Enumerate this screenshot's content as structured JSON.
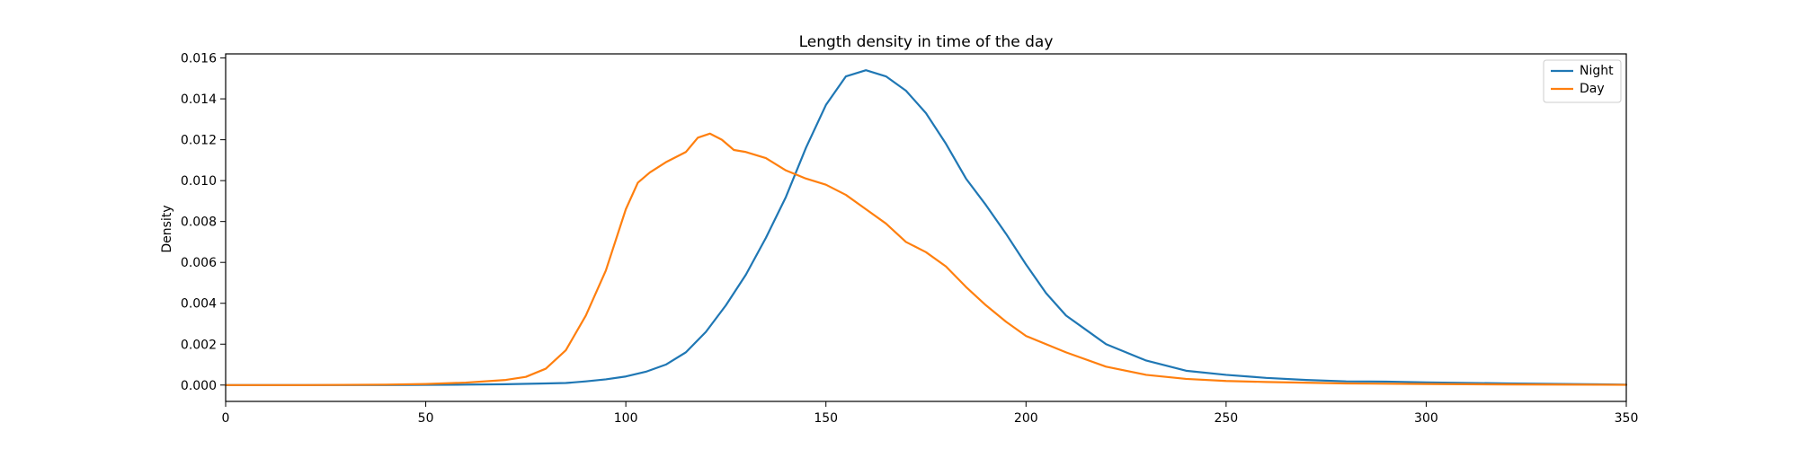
{
  "chart_data": {
    "type": "line",
    "title": "Length density in time of the day",
    "xlabel": "",
    "ylabel": "Density",
    "xlim": [
      0,
      350
    ],
    "ylim": [
      -0.0008,
      0.0162
    ],
    "xticks": [
      0,
      50,
      100,
      150,
      200,
      250,
      300,
      350
    ],
    "xtick_labels": [
      "0",
      "50",
      "100",
      "150",
      "200",
      "250",
      "300",
      "350"
    ],
    "yticks": [
      0.0,
      0.002,
      0.004,
      0.006,
      0.008,
      0.01,
      0.012,
      0.014,
      0.016
    ],
    "ytick_labels": [
      "0.000",
      "0.002",
      "0.004",
      "0.006",
      "0.008",
      "0.010",
      "0.012",
      "0.014",
      "0.016"
    ],
    "grid": false,
    "legend_position": "top-right",
    "series": [
      {
        "name": "Night",
        "color": "#1f77b4",
        "x": [
          0,
          20,
          40,
          60,
          70,
          80,
          85,
          90,
          95,
          100,
          105,
          110,
          115,
          120,
          125,
          130,
          135,
          140,
          145,
          150,
          155,
          160,
          165,
          170,
          175,
          180,
          185,
          190,
          195,
          200,
          205,
          210,
          215,
          220,
          230,
          240,
          250,
          260,
          270,
          280,
          290,
          300,
          320,
          340,
          350
        ],
        "y": [
          0.0,
          0.0,
          0.0,
          2e-05,
          4e-05,
          8e-05,
          0.0001,
          0.00018,
          0.00028,
          0.00042,
          0.00065,
          0.001,
          0.0016,
          0.0026,
          0.0039,
          0.0054,
          0.0072,
          0.0092,
          0.0116,
          0.0137,
          0.0151,
          0.0154,
          0.0151,
          0.0144,
          0.0133,
          0.0118,
          0.0101,
          0.0088,
          0.0074,
          0.0059,
          0.0045,
          0.0034,
          0.0027,
          0.002,
          0.0012,
          0.0007,
          0.0005,
          0.00035,
          0.00025,
          0.00018,
          0.00017,
          0.00013,
          8e-05,
          4e-05,
          2e-05
        ]
      },
      {
        "name": "Day",
        "color": "#ff7f0e",
        "x": [
          0,
          20,
          40,
          50,
          60,
          70,
          75,
          80,
          85,
          90,
          95,
          100,
          103,
          106,
          110,
          115,
          118,
          121,
          124,
          127,
          130,
          135,
          140,
          145,
          150,
          155,
          160,
          165,
          170,
          175,
          180,
          185,
          190,
          195,
          200,
          210,
          220,
          230,
          240,
          250,
          260,
          280,
          300,
          320,
          350
        ],
        "y": [
          0.0,
          0.0,
          2e-05,
          5e-05,
          0.00012,
          0.00025,
          0.0004,
          0.0008,
          0.0017,
          0.0034,
          0.0056,
          0.0086,
          0.0099,
          0.0104,
          0.0109,
          0.0114,
          0.0121,
          0.0123,
          0.012,
          0.0115,
          0.0114,
          0.0111,
          0.0105,
          0.0101,
          0.0098,
          0.0093,
          0.0086,
          0.0079,
          0.007,
          0.0065,
          0.0058,
          0.0048,
          0.0039,
          0.0031,
          0.0024,
          0.0016,
          0.0009,
          0.0005,
          0.0003,
          0.0002,
          0.00015,
          8e-05,
          5e-05,
          3e-05,
          1e-05
        ]
      }
    ]
  }
}
